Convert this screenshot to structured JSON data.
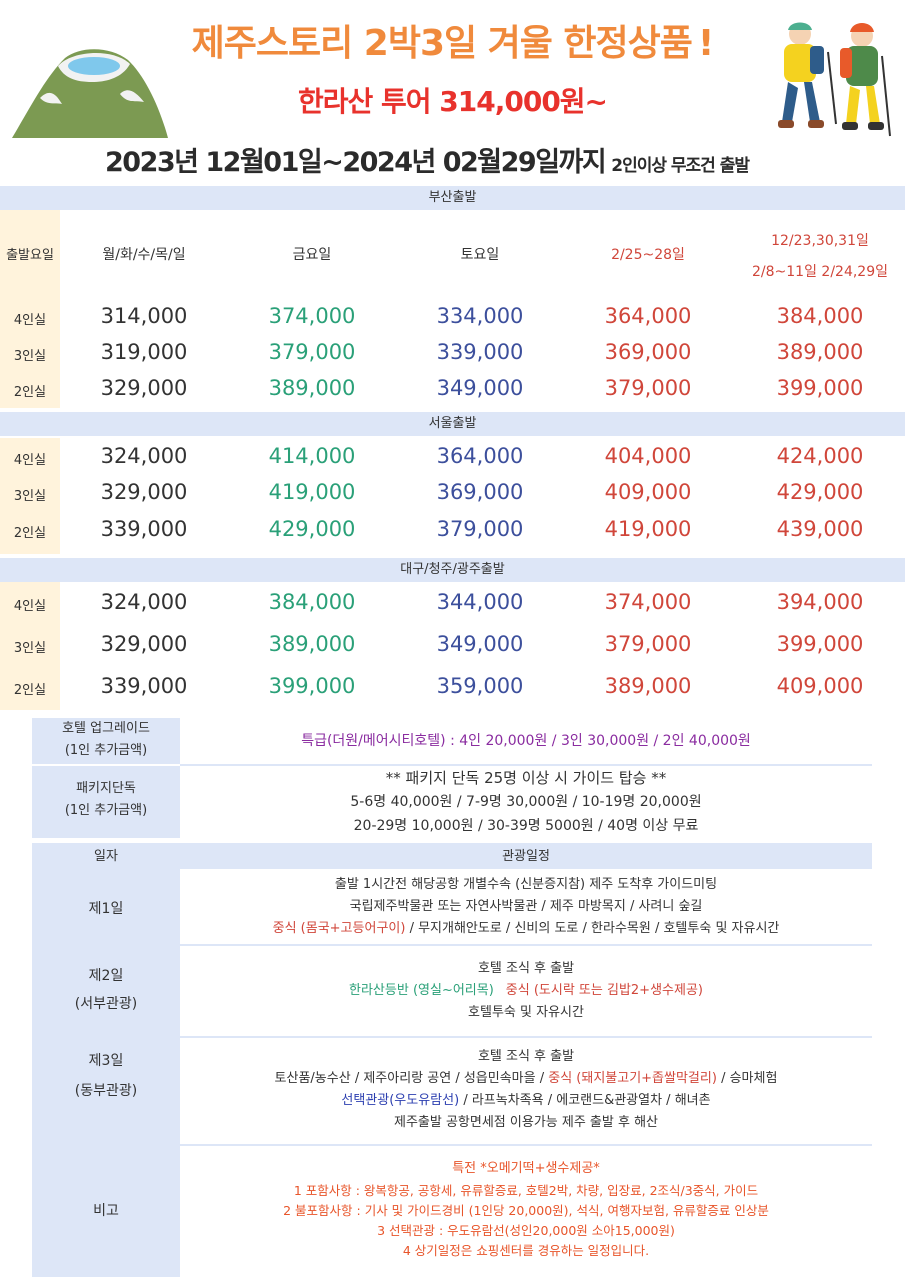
{
  "header": {
    "title": "제주스토리 2박3일  겨울 한정상품",
    "title_mark": "!",
    "subtitle": "한라산 투어 314,000원~",
    "period": "2023년 12월01일~2024년 02월29일까지",
    "period_note": "2인이상 무조건 출발"
  },
  "departure_label": "출발요일",
  "columns": [
    "월/화/수/목/일",
    "금요일",
    "토요일",
    "2/25~28일"
  ],
  "column5_line1": "12/23,30,31일",
  "column5_line2": "2/8~11일 2/24,29일",
  "sections": [
    {
      "name": "부산출발",
      "rows": [
        {
          "room": "4인실",
          "prices": [
            "314,000",
            "374,000",
            "334,000",
            "364,000",
            "384,000"
          ]
        },
        {
          "room": "3인실",
          "prices": [
            "319,000",
            "379,000",
            "339,000",
            "369,000",
            "389,000"
          ]
        },
        {
          "room": "2인실",
          "prices": [
            "329,000",
            "389,000",
            "349,000",
            "379,000",
            "399,000"
          ]
        }
      ]
    },
    {
      "name": "서울출발",
      "rows": [
        {
          "room": "4인실",
          "prices": [
            "324,000",
            "414,000",
            "364,000",
            "404,000",
            "424,000"
          ]
        },
        {
          "room": "3인실",
          "prices": [
            "329,000",
            "419,000",
            "369,000",
            "409,000",
            "429,000"
          ]
        },
        {
          "room": "2인실",
          "prices": [
            "339,000",
            "429,000",
            "379,000",
            "419,000",
            "439,000"
          ]
        }
      ]
    },
    {
      "name": "대구/청주/광주출발",
      "rows": [
        {
          "room": "4인실",
          "prices": [
            "324,000",
            "384,000",
            "344,000",
            "374,000",
            "394,000"
          ]
        },
        {
          "room": "3인실",
          "prices": [
            "329,000",
            "389,000",
            "349,000",
            "379,000",
            "399,000"
          ]
        },
        {
          "room": "2인실",
          "prices": [
            "339,000",
            "399,000",
            "359,000",
            "389,000",
            "409,000"
          ]
        }
      ]
    }
  ],
  "hotel_upgrade": {
    "label1": "호텔 업그레이드",
    "label2": "(1인 추가금액)",
    "text": "특급(더원/메어시티호텔) : 4인 20,000원 / 3인 30,000원 / 2인 40,000원"
  },
  "package_exclusive": {
    "label1": "패키지단독",
    "label2": "(1인 추가금액)",
    "line1": "** 패키지 단독 25명 이상 시 가이드 탑승 **",
    "line2": "5-6명 40,000원 / 7-9명 30,000원 / 10-19명 20,000원",
    "line3": "20-29명 10,000원 / 30-39명 5000원 / 40명 이상 무료"
  },
  "itinerary": {
    "col_day": "일자",
    "col_schedule": "관광일정",
    "day1": {
      "label": "제1일",
      "line1": "출발 1시간전 해당공항 개별수속 (신분증지참) 제주 도착후 가이드미팅",
      "line2": "국립제주박물관 또는 자연사박물관 / 제주 마방목지 / 사려니 숲길",
      "line3_red": "중식 (몸국+고등어구이)",
      "line3_rest": " / 무지개해안도로 / 신비의 도로 / 한라수목원 / 호텔투숙 및 자유시간"
    },
    "day2": {
      "label1": "제2일",
      "label2": "(서부관광)",
      "line1": "호텔 조식 후 출발",
      "line2_green": "한라산등반 (영실~어리목)",
      "line2_red": "중식 (도시락 또는 김밥2+생수제공)",
      "line3": "호텔투숙 및 자유시간"
    },
    "day3": {
      "label1": "제3일",
      "label2": "(동부관광)",
      "line1": "호텔 조식 후 출발",
      "line2_a": "토산품/농수산 / 제주아리랑 공연 / 성읍민속마을 / ",
      "line2_red": "중식 (돼지불고기+좁쌀막걸리)",
      "line2_b": " / 승마체험",
      "line3_blue": "선택관광(우도유람선)",
      "line3_rest": " / 라프녹차족욕 / 에코랜드&관광열차 / 해녀촌",
      "line4": "제주출발 공항면세점 이용가능 제주 출발 후 해산"
    },
    "remarks": {
      "label": "비고",
      "lines": [
        "특전 *오메기떡+생수제공*",
        "1 포함사항 : 왕복항공, 공항세, 유류할증료, 호텔2박, 차량, 입장료, 2조식/3중식, 가이드",
        "2 불포함사항 : 기사 및 가이드경비 (1인당 20,000원), 석식, 여행자보험, 유류할증료 인상분",
        "3 선택관광 : 우도유람선(성인20,000원 소아15,000원)",
        "4 상기일정은 쇼핑센터를 경유하는 일정입니다."
      ]
    }
  },
  "colors": {
    "title": "#f08a3c",
    "subtitle": "#e8322c",
    "band": "#dde6f7",
    "label_bg": "#fff3dc",
    "green": "#2aa078",
    "blue": "#3c4f9c",
    "red": "#d0463a"
  },
  "icons": {
    "mountain": "hallasan-crater-icon",
    "hikers": "hikers-illustration"
  }
}
